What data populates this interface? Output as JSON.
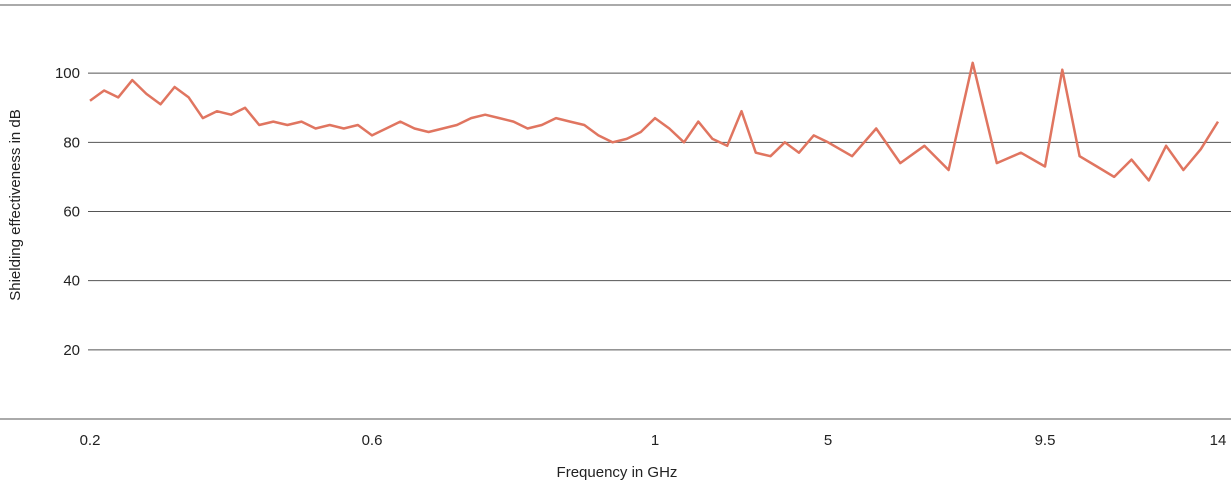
{
  "chart_data": {
    "type": "line",
    "title": "",
    "xlabel": "Frequency in GHz",
    "ylabel": "Shielding effectiveness in dB",
    "x_tick_labels": [
      "0.2",
      "0.6",
      "1",
      "5",
      "9.5",
      "14"
    ],
    "y_ticks": [
      20,
      40,
      60,
      80,
      100
    ],
    "y_tick_labels": [
      "20",
      "40",
      "60",
      "80",
      "100"
    ],
    "ylim": [
      0,
      120
    ],
    "grid": "horizontal",
    "legend": "none",
    "colors": {
      "series": "#e07560",
      "grid": "#555555",
      "text": "#222222"
    },
    "series": [
      {
        "name": "",
        "x": [
          0.2,
          0.22,
          0.24,
          0.26,
          0.28,
          0.3,
          0.32,
          0.34,
          0.36,
          0.38,
          0.4,
          0.42,
          0.44,
          0.46,
          0.48,
          0.5,
          0.52,
          0.54,
          0.56,
          0.58,
          0.6,
          0.62,
          0.64,
          0.66,
          0.68,
          0.7,
          0.72,
          0.74,
          0.76,
          0.78,
          0.8,
          0.82,
          0.84,
          0.86,
          0.88,
          0.9,
          0.92,
          0.94,
          0.96,
          0.98,
          1,
          1.33,
          1.67,
          2,
          2.33,
          2.67,
          3,
          3.33,
          3.67,
          4,
          4.33,
          4.67,
          5,
          5.5,
          6,
          6.5,
          7,
          7.5,
          8,
          8.5,
          9,
          9.5,
          9.95,
          10.4,
          10.85,
          11.3,
          11.75,
          12.2,
          12.65,
          13.1,
          13.55,
          14
        ],
        "values": [
          92,
          95,
          93,
          98,
          94,
          91,
          96,
          93,
          87,
          89,
          88,
          90,
          85,
          86,
          85,
          86,
          84,
          85,
          84,
          85,
          82,
          84,
          86,
          84,
          83,
          84,
          85,
          87,
          88,
          87,
          86,
          84,
          85,
          87,
          86,
          85,
          82,
          80,
          81,
          83,
          87,
          84,
          80,
          86,
          81,
          79,
          89,
          77,
          76,
          80,
          77,
          82,
          80,
          76,
          84,
          74,
          79,
          72,
          103,
          74,
          77,
          73,
          101,
          76,
          73,
          70,
          75,
          69,
          79,
          72,
          78,
          86
        ]
      }
    ]
  }
}
